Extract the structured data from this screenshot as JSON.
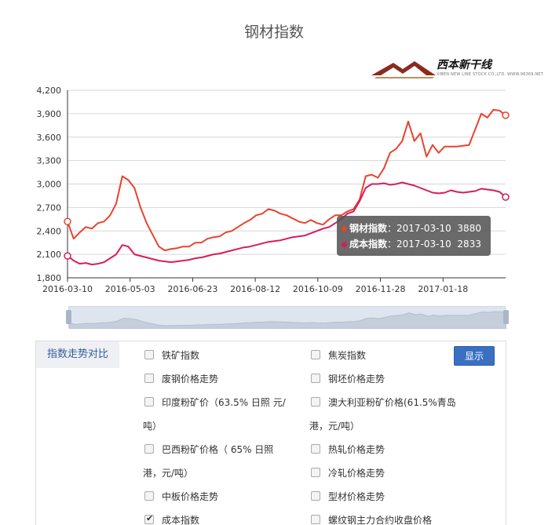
{
  "title": "钢材指数",
  "logo": {
    "text": "西本新干线",
    "subtext": "XIBEN NEW LINE STOCK CO.,LTD.   WWW.96369.NET"
  },
  "chart_data": {
    "type": "line",
    "title": "钢材指数",
    "ylim": [
      1800,
      4200
    ],
    "y_ticks": [
      "1,800",
      "2,100",
      "2,400",
      "2,700",
      "3,000",
      "3,300",
      "3,600",
      "3,900",
      "4,200"
    ],
    "x_tick_labels": [
      "2016-03-10",
      "2016-05-03",
      "2016-06-23",
      "2016-08-12",
      "2016-10-09",
      "2016-11-28",
      "2017-01-18"
    ],
    "grid": true,
    "series": [
      {
        "name": "钢材指数",
        "color": "#e8432f",
        "values": [
          2520,
          2300,
          2380,
          2450,
          2430,
          2500,
          2520,
          2600,
          2750,
          3100,
          3050,
          2950,
          2700,
          2500,
          2350,
          2200,
          2150,
          2170,
          2180,
          2200,
          2200,
          2250,
          2250,
          2300,
          2320,
          2330,
          2380,
          2400,
          2450,
          2500,
          2540,
          2600,
          2620,
          2680,
          2660,
          2620,
          2600,
          2560,
          2520,
          2500,
          2540,
          2500,
          2480,
          2550,
          2600,
          2600,
          2650,
          2680,
          2800,
          3100,
          3120,
          3080,
          3200,
          3400,
          3450,
          3550,
          3800,
          3550,
          3650,
          3350,
          3500,
          3400,
          3480,
          3480,
          3480,
          3490,
          3500,
          3700,
          3900,
          3850,
          3950,
          3940,
          3880
        ]
      },
      {
        "name": "成本指数",
        "color": "#d81b60",
        "values": [
          2080,
          2020,
          1980,
          1990,
          1970,
          1980,
          2000,
          2050,
          2100,
          2220,
          2200,
          2100,
          2080,
          2060,
          2040,
          2020,
          2010,
          2000,
          2010,
          2020,
          2030,
          2050,
          2060,
          2080,
          2100,
          2110,
          2130,
          2150,
          2170,
          2190,
          2200,
          2220,
          2240,
          2260,
          2270,
          2280,
          2300,
          2320,
          2330,
          2340,
          2370,
          2400,
          2430,
          2450,
          2500,
          2550,
          2620,
          2650,
          2780,
          2950,
          3000,
          3000,
          3010,
          2990,
          3000,
          3020,
          3000,
          2980,
          2950,
          2920,
          2890,
          2880,
          2890,
          2920,
          2900,
          2890,
          2900,
          2910,
          2940,
          2930,
          2920,
          2900,
          2833
        ]
      }
    ]
  },
  "tooltip": {
    "rows": [
      {
        "name": "钢材指数",
        "date": "2017-03-10",
        "value": "3880",
        "color": "#e8432f"
      },
      {
        "name": "成本指数",
        "date": "2017-03-10",
        "value": "2833",
        "color": "#d81b60"
      }
    ]
  },
  "panel": {
    "label": "指数走势对比",
    "button": "显示",
    "options_left": [
      {
        "lines": [
          "铁矿指数"
        ],
        "checked": false
      },
      {
        "lines": [
          "废钢价格走势"
        ],
        "checked": false
      },
      {
        "lines": [
          "印度粉矿价（63.5% 日照 元/",
          "吨）"
        ],
        "checked": false
      },
      {
        "lines": [
          "巴西粉矿价格（ 65% 日照",
          "港，元/吨）"
        ],
        "checked": false
      },
      {
        "lines": [
          "中板价格走势"
        ],
        "checked": false
      },
      {
        "lines": [
          "成本指数"
        ],
        "checked": true
      }
    ],
    "options_right": [
      {
        "lines": [
          "焦炭指数"
        ],
        "checked": false
      },
      {
        "lines": [
          "钢坯价格走势"
        ],
        "checked": false
      },
      {
        "lines": [
          "澳大利亚粉矿价格(61.5%青岛",
          "港，元/吨）"
        ],
        "checked": false
      },
      {
        "lines": [
          "热轧价格走势"
        ],
        "checked": false
      },
      {
        "lines": [
          "冷轧价格走势"
        ],
        "checked": false
      },
      {
        "lines": [
          "型材价格走势"
        ],
        "checked": false
      },
      {
        "lines": [
          "螺纹钢主力合约收盘价格"
        ],
        "checked": false
      }
    ]
  }
}
